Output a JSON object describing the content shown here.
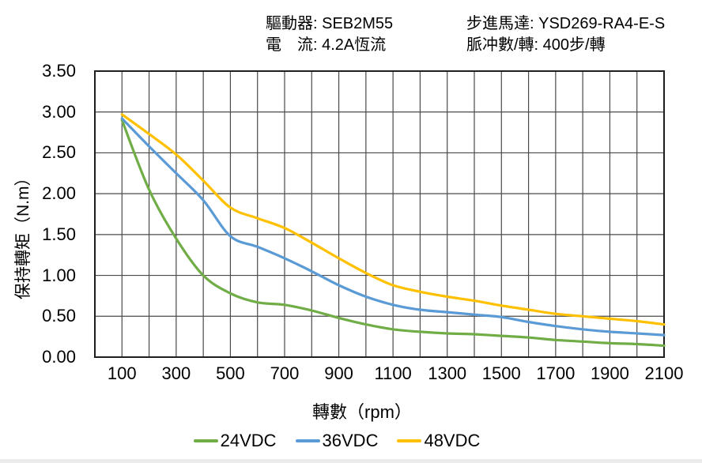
{
  "header": {
    "left_lines": [
      "驅動器: SEB2M55",
      "電　流: 4.2A恆流"
    ],
    "right_lines": [
      "步進馬達: YSD269-RA4-E-S",
      "脈冲數/轉: 400步/轉"
    ]
  },
  "chart_data": {
    "type": "line",
    "title": "",
    "xlabel": "轉數（rpm）",
    "ylabel": "保持轉矩（N.m）",
    "xlim": [
      0,
      2100
    ],
    "ylim": [
      0,
      3.5
    ],
    "x_gridline_every": 100,
    "y_gridline_every": 0.5,
    "grid": true,
    "legend_position": "bottom",
    "xtick_labels": [
      "100",
      "300",
      "500",
      "700",
      "900",
      "1100",
      "1300",
      "1500",
      "1700",
      "1900",
      "2100"
    ],
    "xticks": [
      100,
      300,
      500,
      700,
      900,
      1100,
      1300,
      1500,
      1700,
      1900,
      2100
    ],
    "ytick_labels": [
      "0.00",
      "0.50",
      "1.00",
      "1.50",
      "2.00",
      "2.50",
      "3.00",
      "3.50"
    ],
    "yticks": [
      0,
      0.5,
      1.0,
      1.5,
      2.0,
      2.5,
      3.0,
      3.5
    ],
    "x": [
      100,
      200,
      300,
      400,
      500,
      600,
      700,
      800,
      900,
      1000,
      1100,
      1200,
      1300,
      1400,
      1500,
      1600,
      1700,
      1800,
      1900,
      2000,
      2100
    ],
    "series": [
      {
        "name": "24VDC",
        "color": "#70AD47",
        "values": [
          2.9,
          2.05,
          1.45,
          1.0,
          0.78,
          0.67,
          0.64,
          0.57,
          0.48,
          0.4,
          0.34,
          0.31,
          0.29,
          0.28,
          0.26,
          0.24,
          0.21,
          0.19,
          0.17,
          0.16,
          0.14
        ]
      },
      {
        "name": "36VDC",
        "color": "#5B9BD5",
        "values": [
          2.92,
          2.58,
          2.25,
          1.92,
          1.48,
          1.35,
          1.21,
          1.05,
          0.88,
          0.74,
          0.64,
          0.58,
          0.55,
          0.52,
          0.49,
          0.43,
          0.38,
          0.34,
          0.31,
          0.29,
          0.27
        ]
      },
      {
        "name": "48VDC",
        "color": "#FFC000",
        "values": [
          2.97,
          2.73,
          2.48,
          2.16,
          1.83,
          1.7,
          1.58,
          1.4,
          1.21,
          1.03,
          0.88,
          0.8,
          0.74,
          0.69,
          0.63,
          0.58,
          0.53,
          0.5,
          0.47,
          0.44,
          0.4
        ]
      }
    ],
    "colors": {
      "grid": "#4a4a4a",
      "border": "#1f1f1f",
      "text": "#000000"
    }
  }
}
